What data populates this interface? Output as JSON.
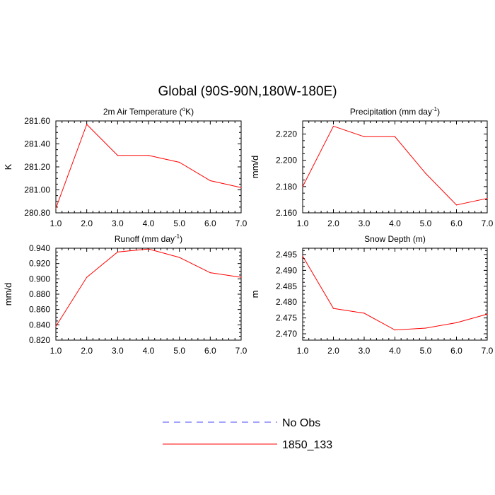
{
  "figure": {
    "title": "Global (90S-90N,180W-180E)"
  },
  "chart_data": [
    {
      "type": "line",
      "title": "2m Air Temperature (",
      "title_sup": "o",
      "title_tail": "K)",
      "ylabel": "K",
      "x": [
        1,
        2,
        3,
        4,
        5,
        6,
        7
      ],
      "xticks": [
        "1.0",
        "2.0",
        "3.0",
        "4.0",
        "5.0",
        "6.0",
        "7.0"
      ],
      "xlim": [
        1,
        7
      ],
      "ylim": [
        280.8,
        281.6
      ],
      "yticks": [
        280.8,
        281.0,
        281.2,
        281.4,
        281.6
      ],
      "ytick_labels": [
        "280.80",
        "281.00",
        "281.20",
        "281.40",
        "281.60"
      ],
      "series": [
        {
          "name": "1850_133",
          "color": "#ff0000",
          "values": [
            280.84,
            281.57,
            281.3,
            281.3,
            281.24,
            281.08,
            281.02
          ]
        }
      ]
    },
    {
      "type": "line",
      "title": "Precipitation (mm day",
      "title_sup": "-1",
      "title_tail": ")",
      "ylabel": "mm/d",
      "x": [
        1,
        2,
        3,
        4,
        5,
        6,
        7
      ],
      "xticks": [
        "1.0",
        "2.0",
        "3.0",
        "4.0",
        "5.0",
        "6.0",
        "7.0"
      ],
      "xlim": [
        1,
        7
      ],
      "ylim": [
        2.16,
        2.23
      ],
      "yticks": [
        2.16,
        2.18,
        2.2,
        2.22
      ],
      "ytick_labels": [
        "2.160",
        "2.180",
        "2.200",
        "2.220"
      ],
      "series": [
        {
          "name": "1850_133",
          "color": "#ff0000",
          "values": [
            2.18,
            2.226,
            2.218,
            2.218,
            2.19,
            2.166,
            2.171
          ]
        }
      ]
    },
    {
      "type": "line",
      "title": "Runoff (mm day",
      "title_sup": "-1",
      "title_tail": ")",
      "ylabel": "mm/d",
      "x": [
        1,
        2,
        3,
        4,
        5,
        6,
        7
      ],
      "xticks": [
        "1.0",
        "2.0",
        "3.0",
        "4.0",
        "5.0",
        "6.0",
        "7.0"
      ],
      "xlim": [
        1,
        7
      ],
      "ylim": [
        0.82,
        0.94
      ],
      "yticks": [
        0.82,
        0.84,
        0.86,
        0.88,
        0.9,
        0.92,
        0.94
      ],
      "ytick_labels": [
        "0.820",
        "0.840",
        "0.860",
        "0.880",
        "0.900",
        "0.920",
        "0.940"
      ],
      "series": [
        {
          "name": "1850_133",
          "color": "#ff0000",
          "values": [
            0.838,
            0.902,
            0.935,
            0.939,
            0.928,
            0.908,
            0.902
          ]
        }
      ]
    },
    {
      "type": "line",
      "title": "Snow Depth (m)",
      "title_sup": "",
      "title_tail": "",
      "ylabel": "m",
      "x": [
        1,
        2,
        3,
        4,
        5,
        6,
        7
      ],
      "xticks": [
        "1.0",
        "2.0",
        "3.0",
        "4.0",
        "5.0",
        "6.0",
        "7.0"
      ],
      "xlim": [
        1,
        7
      ],
      "ylim": [
        2.468,
        2.497
      ],
      "yticks": [
        2.47,
        2.475,
        2.48,
        2.485,
        2.49,
        2.495
      ],
      "ytick_labels": [
        "2.470",
        "2.475",
        "2.480",
        "2.485",
        "2.490",
        "2.495"
      ],
      "series": [
        {
          "name": "1850_133",
          "color": "#ff0000",
          "values": [
            2.4945,
            2.478,
            2.4765,
            2.4712,
            2.4718,
            2.4735,
            2.4762
          ]
        }
      ]
    }
  ],
  "legend": {
    "placement": "bottom-center",
    "entries": [
      {
        "label": "No Obs",
        "color": "#4a4aff",
        "style": "dashed"
      },
      {
        "label": "1850_133",
        "color": "#ff0000",
        "style": "solid"
      }
    ]
  }
}
